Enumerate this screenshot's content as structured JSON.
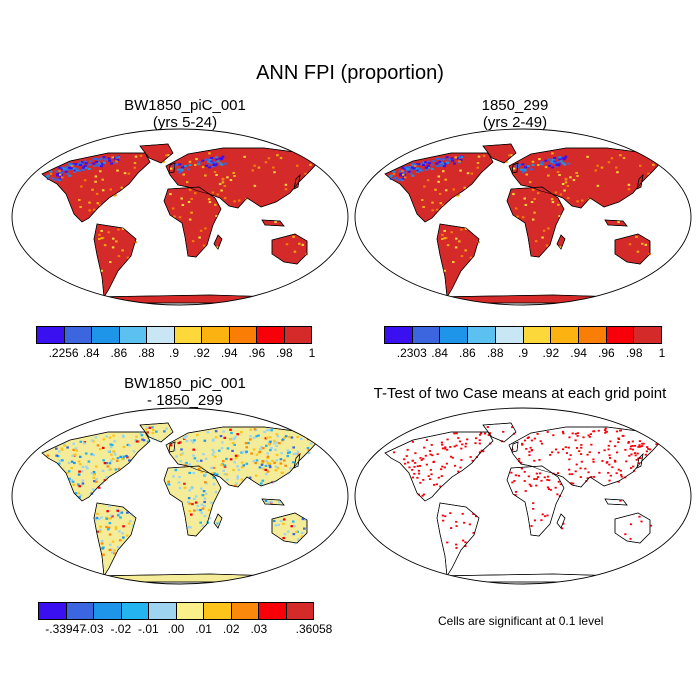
{
  "main_title": "ANN FPI (proportion)",
  "panels": [
    {
      "id": "case1",
      "title_line1": "BW1850_piC_001",
      "title_line2": "(yrs 5-24)",
      "colorbar": {
        "colors": [
          "#3b10f0",
          "#3c66e0",
          "#1e95e8",
          "#5cc1f0",
          "#c8e6f4",
          "#fdd83a",
          "#fcb312",
          "#fa7d06",
          "#f8000a",
          "#d42a2a"
        ],
        "labels": [
          ".2256",
          ".84",
          ".86",
          ".88",
          ".9",
          ".92",
          ".94",
          ".96",
          ".98",
          "1"
        ]
      }
    },
    {
      "id": "case2",
      "title_line1": "1850_299",
      "title_line2": "(yrs 2-49)",
      "colorbar": {
        "colors": [
          "#3b10f0",
          "#3c66e0",
          "#1e95e8",
          "#5cc1f0",
          "#c8e6f4",
          "#fdd83a",
          "#fcb312",
          "#fa7d06",
          "#f8000a",
          "#d42a2a"
        ],
        "labels": [
          ".2303",
          ".84",
          ".86",
          ".88",
          ".9",
          ".92",
          ".94",
          ".96",
          ".98",
          "1"
        ]
      }
    },
    {
      "id": "diff",
      "title_line1": "BW1850_piC_001",
      "title_line2": "- 1850_299",
      "colorbar": {
        "colors": [
          "#3b10f0",
          "#3c66e0",
          "#1e95e8",
          "#24b4f0",
          "#9fd4f0",
          "#faf08a",
          "#fdc41c",
          "#fb8a0c",
          "#f8000a",
          "#d42a2a"
        ],
        "labels": [
          "-.33947",
          "-.03",
          "-.02",
          "-.01",
          ".00",
          ".01",
          ".02",
          ".03",
          "",
          ".36058"
        ]
      }
    },
    {
      "id": "ttest",
      "title_line1": "T-Test of two Case means at each grid point",
      "note": "Cells are significant at 0.1 level"
    }
  ],
  "colors": {
    "land_case": "#d42a2a",
    "land_diff": "#f4ec98",
    "significant": "#f8000a"
  }
}
